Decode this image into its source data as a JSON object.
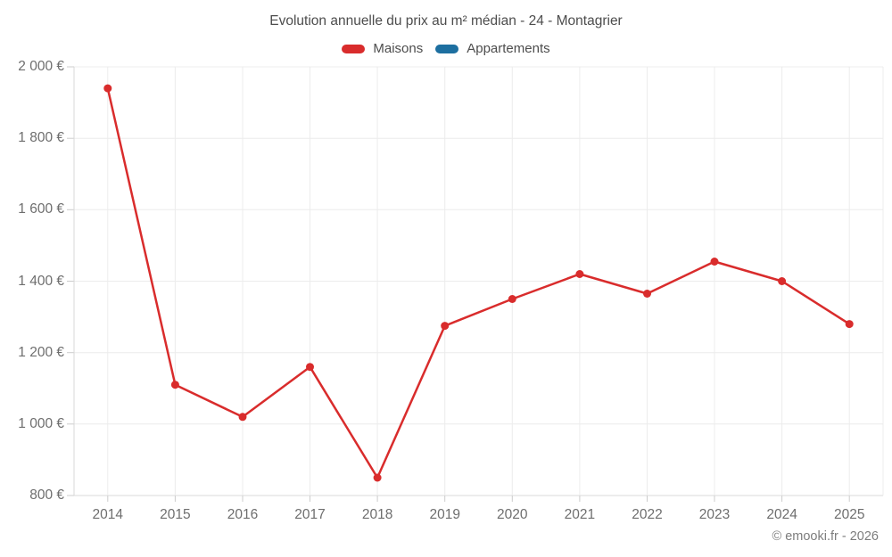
{
  "title": "Evolution annuelle du prix au m² médian - 24 - Montagrier",
  "legend": [
    {
      "label": "Maisons",
      "color": "#d92c2c"
    },
    {
      "label": "Appartements",
      "color": "#1d6fa0"
    }
  ],
  "footer": {
    "text": "© emooki.fr - 2026"
  },
  "colors": {
    "maisons": "#d92c2c",
    "appartements": "#1d6fa0",
    "gridline": "#ececec",
    "axis_line": "#d9d9d9",
    "tick_mark": "#cccccc",
    "title_text": "#4d4d4d",
    "tick_text": "#6e6e6e",
    "footer_text": "#7d7d7d"
  },
  "chart_data": {
    "type": "line",
    "title": "Evolution annuelle du prix au m² médian - 24 - Montagrier",
    "xlabel": "",
    "ylabel": "",
    "categories": [
      "2014",
      "2015",
      "2016",
      "2017",
      "2018",
      "2019",
      "2020",
      "2021",
      "2022",
      "2023",
      "2024",
      "2025"
    ],
    "series": [
      {
        "name": "Maisons",
        "color": "#d92c2c",
        "values": [
          1940,
          1110,
          1020,
          1160,
          850,
          1275,
          1350,
          1420,
          1365,
          1455,
          1400,
          1280
        ]
      },
      {
        "name": "Appartements",
        "color": "#1d6fa0",
        "values": []
      }
    ],
    "ylim": [
      800,
      2000
    ],
    "ytick_step": 200,
    "ytick_labels": [
      "800 €",
      "1 000 €",
      "1 200 €",
      "1 400 €",
      "1 600 €",
      "1 800 €",
      "2 000 €"
    ],
    "grid": true,
    "legend_position": "top"
  }
}
